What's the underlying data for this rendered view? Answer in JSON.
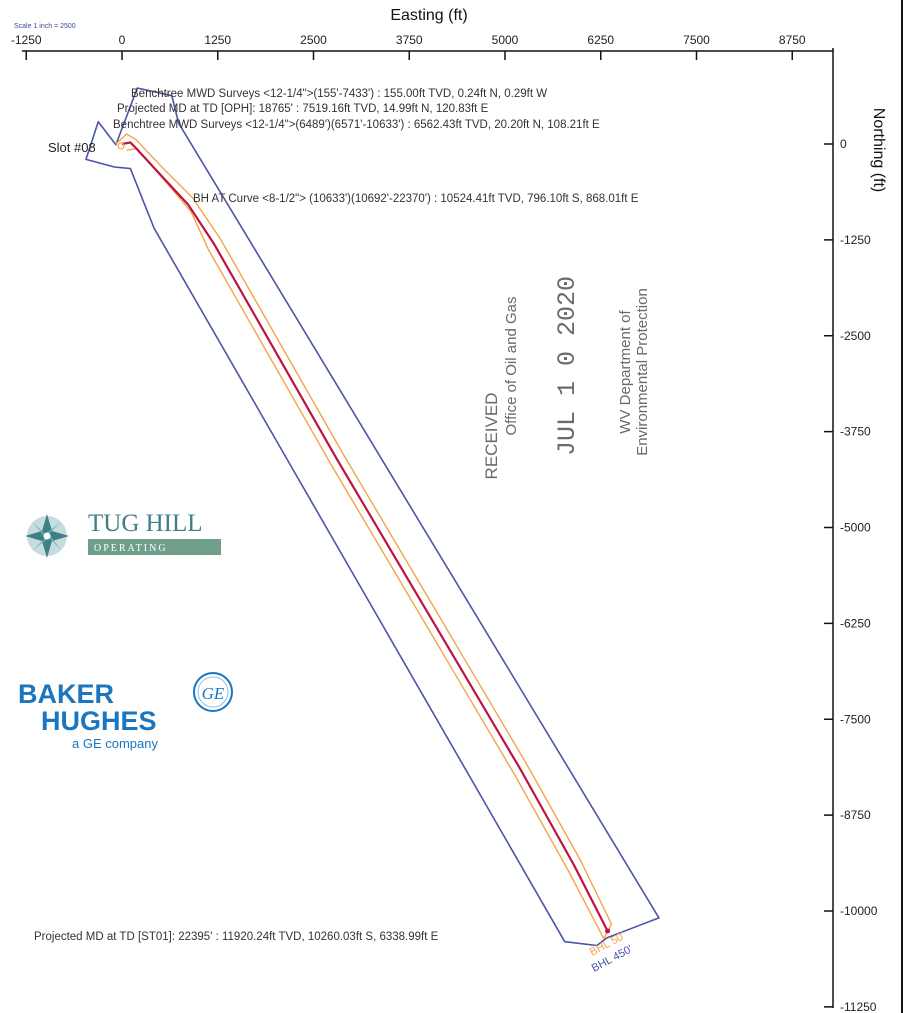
{
  "chart_data": {
    "type": "line",
    "title": "",
    "xlabel": "Easting (ft)",
    "ylabel": "Northing (ft)",
    "scale_note": "Scale 1 inch = 2500",
    "x_ticks": [
      "-1250",
      "0",
      "1250",
      "2500",
      "3750",
      "5000",
      "6250",
      "7500",
      "8750"
    ],
    "x_tick_values": [
      -1250,
      0,
      1250,
      2500,
      3750,
      5000,
      6250,
      7500,
      8750
    ],
    "y_ticks": [
      "0",
      "-1250",
      "-2500",
      "-3750",
      "-5000",
      "-6250",
      "-7500",
      "-8750",
      "-10000",
      "-11250"
    ],
    "y_tick_values": [
      0,
      -1250,
      -2500,
      -3750,
      -5000,
      -6250,
      -7500,
      -8750,
      -10000,
      -11250
    ],
    "xlim": [
      -1250,
      8750
    ],
    "ylim": [
      -11250,
      0
    ],
    "grid": false,
    "series": [],
    "wellpath": {
      "x": [
        0,
        108,
        160,
        500,
        868,
        1200,
        2000,
        2800,
        3600,
        4400,
        5200,
        5900,
        6339
      ],
      "y": [
        0,
        20,
        -30,
        -400,
        -796,
        -1300,
        -2700,
        -4100,
        -5450,
        -6800,
        -8150,
        -9400,
        -10260
      ],
      "color": "#c0123f"
    },
    "offset_50": {
      "left": {
        "x": [
          -80,
          60,
          180,
          520,
          920,
          1280,
          2080,
          2880,
          3680,
          4480,
          5280,
          5980,
          6390
        ],
        "y": [
          0,
          130,
          60,
          -300,
          -700,
          -1230,
          -2630,
          -4030,
          -5380,
          -6730,
          -8080,
          -9330,
          -10170
        ]
      },
      "right": {
        "x": [
          60,
          200,
          240,
          560,
          900,
          1130,
          1930,
          2730,
          3530,
          4330,
          5130,
          5830,
          6290
        ],
        "y": [
          -80,
          -60,
          -110,
          -480,
          -880,
          -1380,
          -2780,
          -4180,
          -5530,
          -6880,
          -8230,
          -9480,
          -10360
        ]
      },
      "color": "#f2a54a"
    },
    "hardline_boundary": {
      "x": [
        -80,
        200,
        650,
        740,
        7010,
        6330,
        6200,
        5780,
        420,
        280,
        110,
        -100,
        -470,
        -310
      ],
      "y": [
        -10,
        730,
        630,
        270,
        -10090,
        -10350,
        -10450,
        -10400,
        -1100,
        -750,
        -320,
        -300,
        -200,
        290
      ],
      "color": "#4a55a8"
    },
    "annotations": [
      "Benchtree MWD Surveys <12-1/4\">(155'-7433') : 155.00ft TVD, 0.24ft N, 0.29ft W",
      "Projected MD at TD [OPH]: 18765' : 7519.16ft TVD, 14.99ft N, 120.83ft E",
      "Benchtree MWD Surveys <12-1/4\">(6489')(6571'-10633') : 6562.43ft TVD, 20.20ft N, 108.21ft E",
      "BH AT Curve <8-1/2\"> (10633')(10692'-22370') : 10524.41ft TVD, 796.10ft S, 868.01ft E",
      "Projected MD at TD [ST01]: 22395' : 11920.24ft TVD, 10260.03ft S, 6338.99ft E"
    ],
    "labels": {
      "slot": "Slot #08",
      "bhl_50": "BHL 50'",
      "bhl_450": "BHL 450'"
    }
  },
  "stamp": {
    "line1": "RECEIVED",
    "line2": "Office of Oil and Gas",
    "date": "JUL 1 0 2020",
    "line3": "WV Department of",
    "line4": "Environmental Protection"
  },
  "logos": {
    "tug_hill_name": "TUG HILL",
    "tug_hill_sub": "OPERATING",
    "baker_line1": "BAKER",
    "baker_line2": "HUGHES",
    "baker_line3": "a GE company",
    "ge_mark": "GE"
  },
  "colors": {
    "wellpath": "#c0123f",
    "offset": "#f2a54a",
    "boundary": "#4a55a8",
    "stamp": "#6a6a6a",
    "tug_hill": "#3f7f86",
    "baker": "#1a76bf"
  }
}
